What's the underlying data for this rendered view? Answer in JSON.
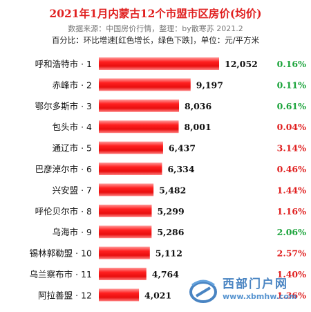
{
  "header": {
    "title": "2021年1月内蒙古12个市盟市区房价(均价)",
    "source_line": "数据来源：中国房价行情，整理：by散寒苏 2021.2",
    "note_line": "百分比：环比增速[红色增长，绿色下跌]，单位：元/平方米"
  },
  "colors": {
    "bar": "#ff1f1f",
    "increase": "#e02020",
    "decrease": "#1aa33a"
  },
  "chart_data": {
    "type": "bar",
    "orientation": "horizontal",
    "title": "2021年1月内蒙古12个市盟市区房价(均价)",
    "categories": [
      "呼和浩特市 · 1",
      "赤峰市 · 2",
      "鄂尔多斯市 · 3",
      "包头市 · 4",
      "通辽市 · 5",
      "巴彦淖尔市 · 6",
      "兴安盟 · 7",
      "呼伦贝尔市 · 8",
      "乌海市 · 9",
      "锡林郭勒盟 · 10",
      "乌兰察布市 · 11",
      "阿拉善盟 · 12"
    ],
    "values": [
      12052,
      9197,
      8036,
      8001,
      6437,
      6334,
      5482,
      5299,
      5286,
      5112,
      4764,
      4021
    ],
    "value_labels": [
      "12,052",
      "9,197",
      "8,036",
      "8,001",
      "6,437",
      "6,334",
      "5,482",
      "5,299",
      "5,286",
      "5,112",
      "4,764",
      "4,021"
    ],
    "changes": [
      "0.16%",
      "0.11%",
      "0.61%",
      "0.04%",
      "3.14%",
      "0.46%",
      "1.44%",
      "1.16%",
      "2.06%",
      "2.57%",
      "1.40%",
      "1.36%"
    ],
    "change_direction": [
      "decrease",
      "decrease",
      "decrease",
      "increase",
      "increase",
      "increase",
      "increase",
      "increase",
      "decrease",
      "increase",
      "increase",
      "increase"
    ],
    "unit": "元/平方米",
    "xlim": [
      0,
      12052
    ]
  },
  "watermark": {
    "brand": "西部门户网",
    "url": "www.xbmhw.com",
    "icon": "globe-logo-icon"
  }
}
